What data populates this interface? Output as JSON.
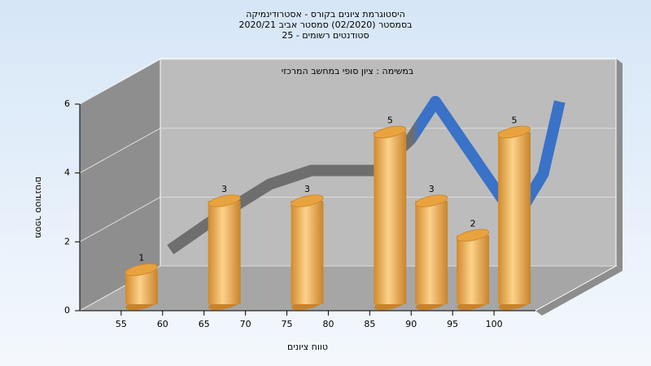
{
  "chart_data": {
    "type": "histogram",
    "title": [
      "היסטוגרמת ציונים בקורס - אסטרודינמיקה",
      "בסמסטר  (02/2020)  סמסטר אביב 2020/21",
      "סטודנטים רשומים - 25"
    ],
    "annotation": "במשימה : ציון סופי במחשב המרכזי",
    "y_label": "מספר סטודנטים",
    "x_label": "טווח ציונים",
    "bins": [
      55,
      60,
      65,
      70,
      75,
      80,
      85,
      90,
      95,
      100,
      105
    ],
    "values": [
      1,
      0,
      3,
      0,
      3,
      0,
      5,
      3,
      2,
      5
    ],
    "color": "#e8a94c",
    "trend": {
      "x": [
        57,
        63,
        69,
        74,
        78,
        82,
        86,
        89,
        93,
        97,
        99,
        102,
        104
      ],
      "values": [
        1.3,
        2.3,
        3.2,
        3.6,
        3.6,
        3.6,
        4.5,
        5.6,
        4.2,
        2.8,
        2.3,
        3.5,
        5.6
      ],
      "colors": [
        "#6e6e6e",
        "#3a72c8"
      ]
    },
    "xlim": [
      50,
      105
    ],
    "xticks": [
      55,
      60,
      65,
      70,
      75,
      80,
      85,
      90,
      95,
      100
    ],
    "ylim": [
      0,
      6
    ],
    "yticks": [
      0,
      2,
      4,
      6
    ],
    "grid": true
  }
}
